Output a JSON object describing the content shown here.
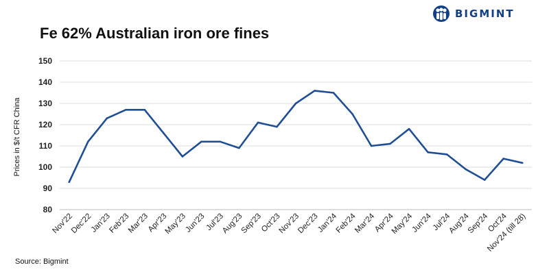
{
  "brand": {
    "name": "BIGMINT",
    "logo_icon": "bigmint-logo-icon",
    "color": "#123f86"
  },
  "footer": {
    "source": "Source: Bigmint"
  },
  "chart_data": {
    "type": "line",
    "title": "Fe 62% Australian iron ore fines",
    "xlabel": "",
    "ylabel": "Prices in $/t CFR China",
    "ylim": [
      80,
      150
    ],
    "yticks": [
      80,
      90,
      100,
      110,
      120,
      130,
      140,
      150
    ],
    "grid": true,
    "legend": "none",
    "line_color": "#1f4e96",
    "categories": [
      "Nov'22",
      "Dec'22",
      "Jan'23",
      "Feb'23",
      "Mar'23",
      "Apr'23",
      "May'23",
      "Jun'23",
      "Jul'23",
      "Aug'23",
      "Sep'23",
      "Oct'23",
      "Nov'23",
      "Dec'23",
      "Jan'24",
      "Feb'24",
      "Mar'24",
      "Apr'24",
      "May'24",
      "Jun'24",
      "Jul'24",
      "Aug'24",
      "Sep'24",
      "Oct'24",
      "Nov'24 (till 28)"
    ],
    "values": [
      93,
      112,
      123,
      127,
      127,
      116,
      105,
      112,
      112,
      109,
      121,
      119,
      130,
      136,
      135,
      125,
      110,
      111,
      118,
      107,
      106,
      99,
      94,
      104,
      102
    ]
  }
}
